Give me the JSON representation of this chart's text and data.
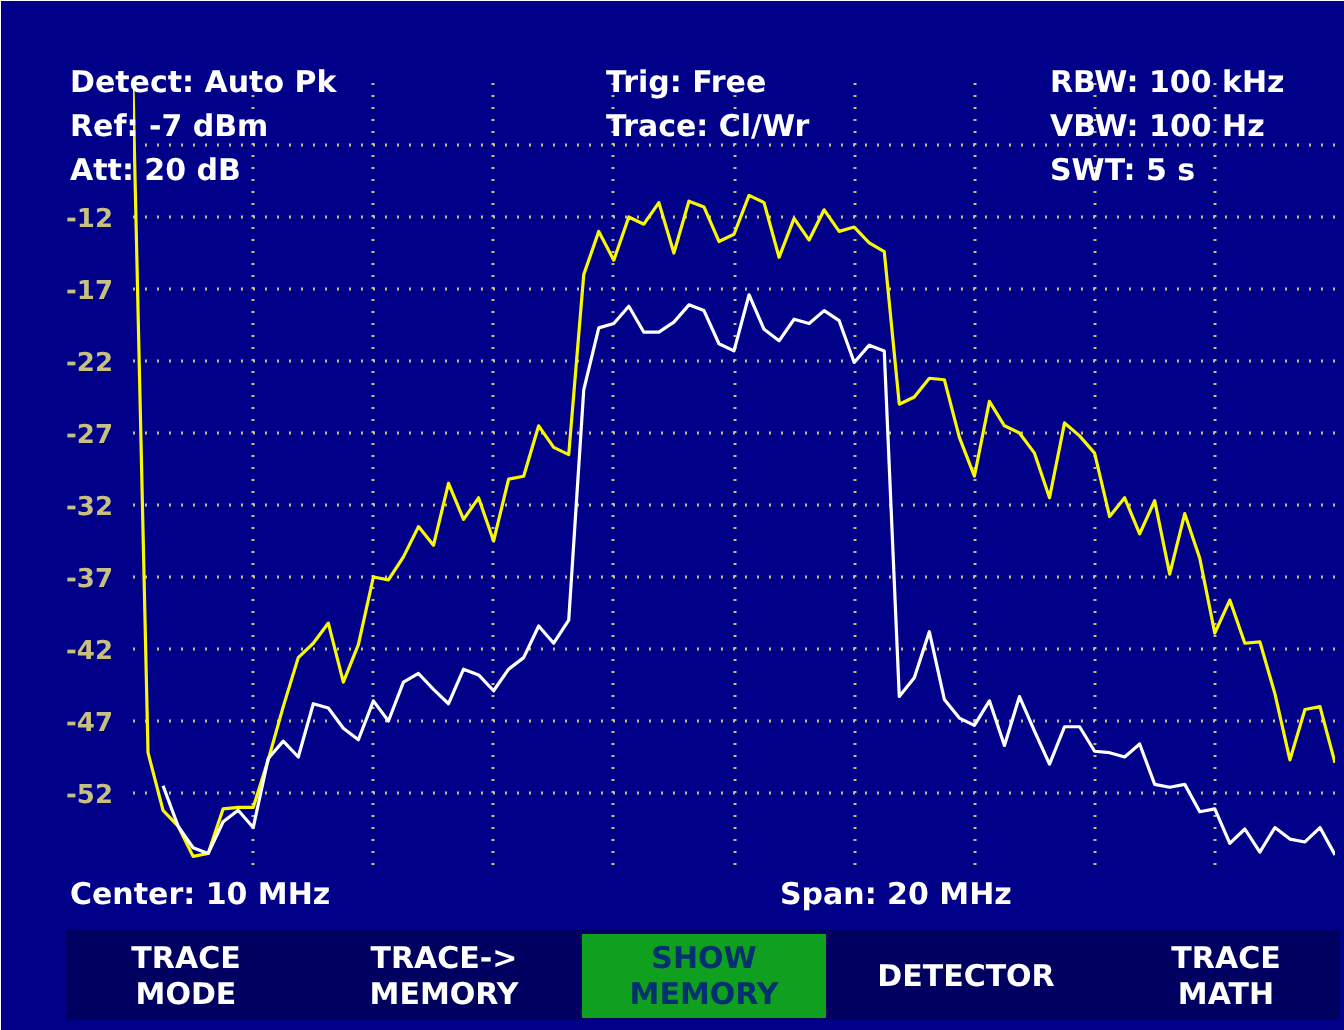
{
  "chart_data": {
    "type": "line",
    "annotations": [
      "Detect: Auto Pk",
      "Ref: -7 dBm",
      "Att: 20 dB",
      "Trig: Free",
      "Trace: Cl/Wr",
      "RBW: 100 kHz",
      "VBW: 100 Hz",
      "SWT: 5 s",
      "Center: 10 MHz",
      "Span: 20 MHz",
      "TRACE MODE",
      "TRACE-> MEMORY",
      "SHOW MEMORY",
      "DETECTOR",
      "TRACE MATH"
    ],
    "categories": [
      null,
      null,
      null,
      null,
      null,
      null,
      null,
      null,
      null,
      null,
      null,
      null,
      null,
      null,
      null,
      null,
      null,
      null,
      null,
      null,
      null,
      null,
      null,
      null,
      null,
      null,
      null,
      null,
      null,
      null,
      null,
      null,
      null,
      null,
      null,
      null,
      null,
      null,
      null,
      null,
      null,
      null,
      null,
      null,
      null,
      null,
      null,
      null,
      null,
      null,
      null,
      null,
      null,
      null,
      null,
      null,
      null,
      null,
      null,
      null,
      null,
      null,
      null,
      null,
      null,
      null,
      null,
      null,
      null,
      null,
      null,
      null,
      null,
      null,
      null,
      null,
      null,
      null,
      null,
      null,
      null
    ],
    "ylim": [
      -57,
      -2
    ],
    "yticks": [
      {
        "value": -7,
        "label": null
      },
      -12,
      -17,
      -22,
      -27,
      -32,
      -37,
      -42,
      -47,
      -52,
      {
        "value": -57,
        "label": null
      }
    ],
    "tick_labels": "y",
    "grid": true,
    "series": [
      {
        "color": "#f8f800",
        "values": [
          -3,
          -49.2,
          -53.2,
          -54.3,
          -56.4,
          -56.2,
          -53.1,
          -53,
          -53,
          -49.7,
          -46,
          -42.6,
          -41.6,
          -40.2,
          -44.3,
          -41.7,
          -37,
          -37.2,
          -35.6,
          -33.5,
          -34.8,
          -30.5,
          -33,
          -31.5,
          -34.5,
          -30.2,
          -30,
          -26.5,
          -28,
          -28.5,
          -16,
          -13,
          -15,
          -12,
          -12.5,
          -11,
          -14.5,
          -10.9,
          -11.3,
          -13.7,
          -13.2,
          -10.5,
          -11,
          -14.8,
          -12.1,
          -13.6,
          -11.5,
          -13,
          -12.7,
          -13.8,
          -14.4,
          -25,
          -24.5,
          -23.2,
          -23.3,
          -27.3,
          -30,
          -24.8,
          -26.5,
          -27,
          -28.4,
          -31.5,
          -26.3,
          -27.2,
          -28.4,
          -32.8,
          -31.5,
          -34,
          -31.7,
          -36.8,
          -32.6,
          -35.7,
          -40.9,
          -38.6,
          -41.6,
          -41.5,
          -45.1,
          -49.7,
          -46.2,
          -46,
          -49.9
        ]
      },
      {
        "color": "#ffffff",
        "values": [
          null,
          null,
          -51.5,
          -54.3,
          -55.8,
          -56.2,
          -54,
          -53.2,
          -54.4,
          -49.6,
          -48.4,
          -49.5,
          -45.8,
          -46.1,
          -47.5,
          -48.3,
          -45.6,
          -47,
          -44.3,
          -43.7,
          -44.8,
          -45.8,
          -43.4,
          -43.8,
          -44.9,
          -43.4,
          -42.6,
          -40.4,
          -41.6,
          -40,
          -24,
          -19.7,
          -19.4,
          -18.2,
          -20,
          -20,
          -19.3,
          -18.1,
          -18.5,
          -20.8,
          -21.3,
          -17.4,
          -19.8,
          -20.6,
          -19.1,
          -19.4,
          -18.5,
          -19.2,
          -22.1,
          -20.9,
          -21.3,
          -45.3,
          -44,
          -40.8,
          -45.5,
          -46.8,
          -47.3,
          -45.6,
          -48.7,
          -45.3,
          -47.7,
          -50,
          -47.4,
          -47.4,
          -49.1,
          -49.2,
          -49.5,
          -48.6,
          -51.4,
          -51.6,
          -51.4,
          -53.3,
          -53.1,
          -55.5,
          -54.5,
          -56.1,
          -54.4,
          -55.2,
          -55.4,
          -54.4,
          -56.3
        ]
      }
    ]
  }
}
